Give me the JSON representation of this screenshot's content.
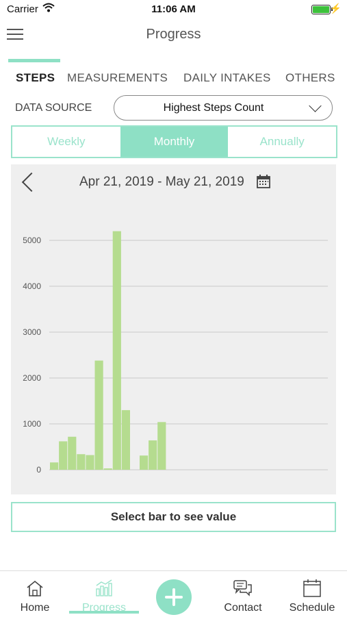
{
  "status": {
    "carrier": "Carrier",
    "time": "11:06 AM"
  },
  "header": {
    "title": "Progress"
  },
  "tabs": [
    "STEPS",
    "MEASUREMENTS",
    "DAILY INTAKES",
    "OTHERS"
  ],
  "data_source": {
    "label": "DATA SOURCE",
    "value": "Highest Steps Count"
  },
  "periods": {
    "weekly": "Weekly",
    "monthly": "Monthly",
    "annually": "Annually",
    "selected": "Monthly"
  },
  "chart": {
    "range": "Apr 21, 2019 - May 21, 2019",
    "hint": "Select bar to see value"
  },
  "chart_data": {
    "type": "bar",
    "y_ticks": [
      "0",
      "1000",
      "2000",
      "3000",
      "4000",
      "5000"
    ],
    "ylim": [
      0,
      5000
    ],
    "grid": true,
    "bar_color": "#b5dc8f",
    "values": [
      160,
      620,
      720,
      340,
      320,
      2380,
      30,
      5200,
      1300,
      0,
      310,
      640,
      1040
    ]
  },
  "nav": {
    "home": "Home",
    "progress": "Progress",
    "contact": "Contact",
    "schedule": "Schedule"
  },
  "colors": {
    "accent": "#8ee0c5"
  }
}
